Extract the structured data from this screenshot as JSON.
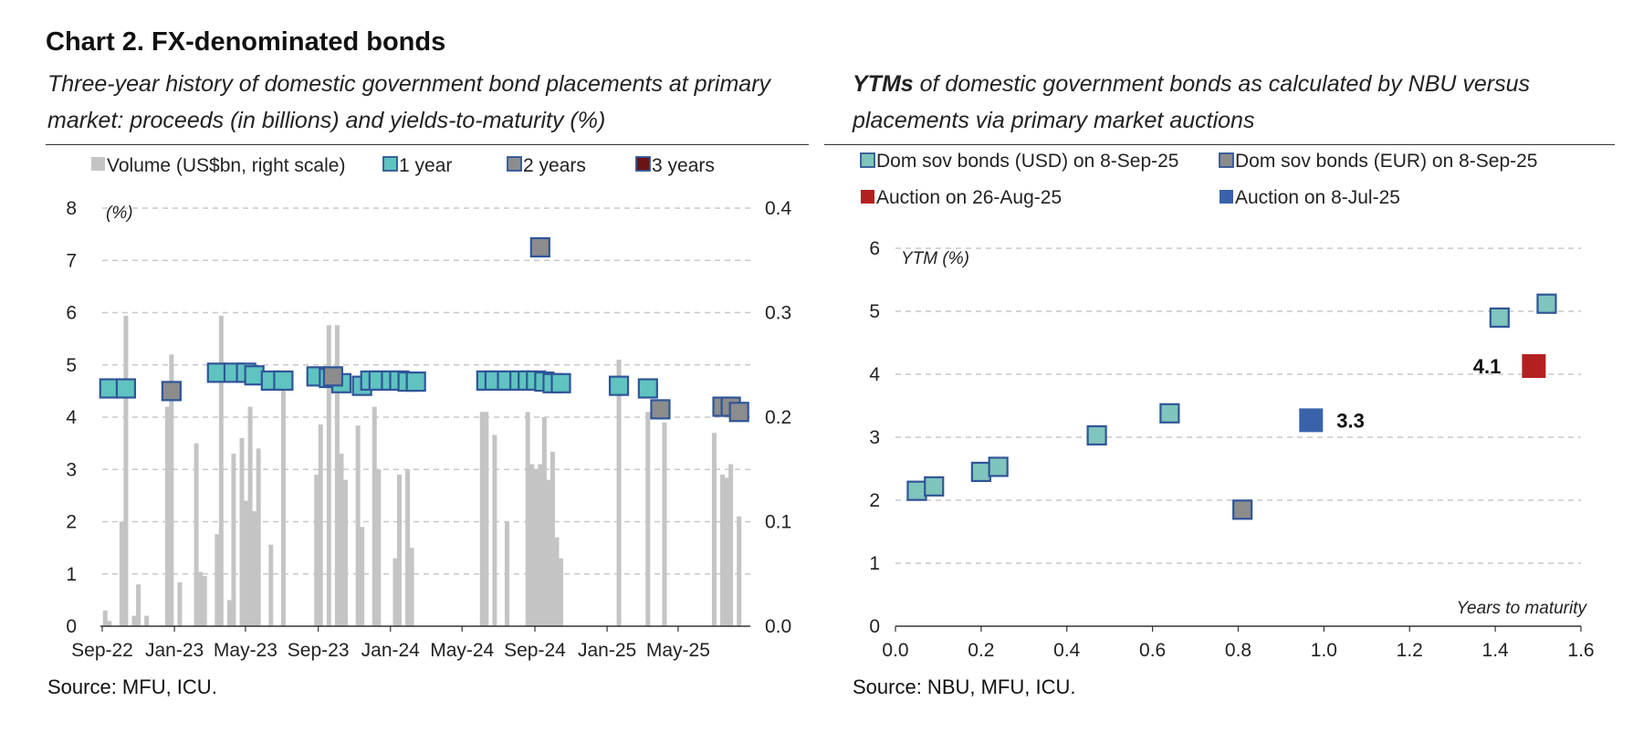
{
  "header": {
    "title": "Chart 2. FX-denominated bonds",
    "left_subtitle": "Three-year history of domestic government bond placements at primary market: proceeds (in billions) and yields-to-maturity (%)",
    "right_subtitle_em": "YTMs",
    "right_subtitle_rest": " of domestic government bonds as calculated by NBU versus placements via primary market auctions"
  },
  "sources": {
    "left": "Source: MFU, ICU.",
    "right": "Source: NBU, MFU, ICU."
  },
  "colors": {
    "bar": "#c4c4c4",
    "teal": "#5fc3c0",
    "gray_marker": "#8c8c8c",
    "dark_red": "#6b1414",
    "red": "#b42020",
    "blue": "#3a62ab",
    "marker_edge": "#2f5597",
    "grid": "#c8c8c8"
  },
  "chart_data": [
    {
      "type": "bar+scatter",
      "legend": [
        "Volume (US$bn, right scale)",
        "1 year",
        "2 years",
        "3 years"
      ],
      "legend_placement": "top",
      "ylabel_left": "(%)",
      "left_ticks": [
        "0",
        "1",
        "2",
        "3",
        "4",
        "5",
        "6",
        "7",
        "8"
      ],
      "right_ticks": [
        "0.0",
        "0.1",
        "0.2",
        "0.3",
        "0.4"
      ],
      "x_ticks": [
        "Sep-22",
        "Jan-23",
        "May-23",
        "Sep-23",
        "Jan-24",
        "May-24",
        "Sep-24",
        "Jan-25",
        "May-25"
      ],
      "x_range": [
        "2022-09-01",
        "2025-08-31"
      ],
      "ylim_left": [
        0,
        8
      ],
      "ylim_right": [
        0,
        0.4
      ],
      "grid": true,
      "volume_series": {
        "name": "Volume (US$bn, right scale)",
        "points": [
          [
            "2022-09-06",
            0.015
          ],
          [
            "2022-09-13",
            0.005
          ],
          [
            "2022-10-04",
            0.1
          ],
          [
            "2022-10-11",
            0.297
          ],
          [
            "2022-10-25",
            0.01
          ],
          [
            "2022-11-01",
            0.04
          ],
          [
            "2022-11-15",
            0.01
          ],
          [
            "2022-12-20",
            0.21
          ],
          [
            "2022-12-27",
            0.26
          ],
          [
            "2023-01-10",
            0.042
          ],
          [
            "2023-02-07",
            0.175
          ],
          [
            "2023-02-14",
            0.052
          ],
          [
            "2023-02-21",
            0.048
          ],
          [
            "2023-03-14",
            0.088
          ],
          [
            "2023-03-21",
            0.297
          ],
          [
            "2023-04-04",
            0.025
          ],
          [
            "2023-04-11",
            0.165
          ],
          [
            "2023-04-25",
            0.18
          ],
          [
            "2023-05-02",
            0.12
          ],
          [
            "2023-05-09",
            0.21
          ],
          [
            "2023-05-16",
            0.11
          ],
          [
            "2023-05-23",
            0.17
          ],
          [
            "2023-06-13",
            0.078
          ],
          [
            "2023-07-04",
            0.24
          ],
          [
            "2023-08-29",
            0.145
          ],
          [
            "2023-09-05",
            0.193
          ],
          [
            "2023-09-19",
            0.288
          ],
          [
            "2023-10-03",
            0.288
          ],
          [
            "2023-10-10",
            0.165
          ],
          [
            "2023-10-17",
            0.14
          ],
          [
            "2023-11-07",
            0.192
          ],
          [
            "2023-11-14",
            0.095
          ],
          [
            "2023-12-05",
            0.21
          ],
          [
            "2023-12-12",
            0.15
          ],
          [
            "2024-01-09",
            0.065
          ],
          [
            "2024-01-16",
            0.145
          ],
          [
            "2024-01-30",
            0.15
          ],
          [
            "2024-02-06",
            0.075
          ],
          [
            "2024-06-04",
            0.205
          ],
          [
            "2024-06-11",
            0.205
          ],
          [
            "2024-06-25",
            0.183
          ],
          [
            "2024-07-16",
            0.1
          ],
          [
            "2024-08-20",
            0.205
          ],
          [
            "2024-08-27",
            0.155
          ],
          [
            "2024-09-03",
            0.15
          ],
          [
            "2024-09-10",
            0.155
          ],
          [
            "2024-09-17",
            0.2
          ],
          [
            "2024-09-24",
            0.14
          ],
          [
            "2024-10-01",
            0.167
          ],
          [
            "2024-10-08",
            0.085
          ],
          [
            "2024-10-15",
            0.065
          ],
          [
            "2025-01-21",
            0.255
          ],
          [
            "2025-03-11",
            0.205
          ],
          [
            "2025-04-08",
            0.195
          ],
          [
            "2025-07-01",
            0.185
          ],
          [
            "2025-07-15",
            0.145
          ],
          [
            "2025-07-22",
            0.142
          ],
          [
            "2025-07-29",
            0.155
          ],
          [
            "2025-08-12",
            0.105
          ]
        ]
      },
      "yield_series": [
        {
          "name": "1 year",
          "points": [
            [
              "2022-09-13",
              4.55
            ],
            [
              "2022-10-11",
              4.55
            ],
            [
              "2023-03-14",
              4.85
            ],
            [
              "2023-04-11",
              4.85
            ],
            [
              "2023-05-02",
              4.85
            ],
            [
              "2023-05-16",
              4.8
            ],
            [
              "2023-06-13",
              4.7
            ],
            [
              "2023-07-04",
              4.7
            ],
            [
              "2023-08-29",
              4.78
            ],
            [
              "2023-09-19",
              4.75
            ],
            [
              "2023-10-10",
              4.65
            ],
            [
              "2023-11-14",
              4.6
            ],
            [
              "2023-11-28",
              4.7
            ],
            [
              "2023-12-12",
              4.7
            ],
            [
              "2024-01-02",
              4.7
            ],
            [
              "2024-01-16",
              4.7
            ],
            [
              "2024-01-30",
              4.68
            ],
            [
              "2024-02-13",
              4.68
            ],
            [
              "2024-06-11",
              4.7
            ],
            [
              "2024-06-25",
              4.7
            ],
            [
              "2024-07-16",
              4.7
            ],
            [
              "2024-08-06",
              4.7
            ],
            [
              "2024-08-20",
              4.7
            ],
            [
              "2024-09-03",
              4.7
            ],
            [
              "2024-09-17",
              4.68
            ],
            [
              "2024-10-01",
              4.65
            ],
            [
              "2024-10-15",
              4.65
            ],
            [
              "2025-01-21",
              4.6
            ],
            [
              "2025-03-11",
              4.55
            ]
          ]
        },
        {
          "name": "2 years",
          "points": [
            [
              "2022-12-27",
              4.5
            ],
            [
              "2023-09-26",
              4.78
            ],
            [
              "2024-09-10",
              7.25
            ],
            [
              "2025-04-01",
              4.15
            ],
            [
              "2025-07-15",
              4.2
            ],
            [
              "2025-07-29",
              4.2
            ],
            [
              "2025-08-12",
              4.1
            ]
          ]
        },
        {
          "name": "3 years",
          "points": []
        }
      ]
    },
    {
      "type": "scatter",
      "legend": [
        "Dom sov bonds (USD) on 8-Sep-25",
        "Dom sov bonds (EUR) on 8-Sep-25",
        "Auction on 26-Aug-25",
        "Auction on 8-Jul-25"
      ],
      "legend_placement": "top",
      "ylabel": "YTM (%)",
      "xlabel": "Years to maturity",
      "x_ticks": [
        "0.0",
        "0.2",
        "0.4",
        "0.6",
        "0.8",
        "1.0",
        "1.2",
        "1.4",
        "1.6"
      ],
      "y_ticks": [
        "0",
        "1",
        "2",
        "3",
        "4",
        "5",
        "6"
      ],
      "xlim": [
        0,
        1.6
      ],
      "ylim": [
        0,
        6
      ],
      "grid": true,
      "series": [
        {
          "name": "Dom sov bonds (USD) on 8-Sep-25",
          "points": [
            [
              0.05,
              2.15
            ],
            [
              0.09,
              2.22
            ],
            [
              0.2,
              2.45
            ],
            [
              0.24,
              2.53
            ],
            [
              0.47,
              3.03
            ],
            [
              0.64,
              3.38
            ],
            [
              1.41,
              4.9
            ],
            [
              1.52,
              5.12
            ]
          ]
        },
        {
          "name": "Dom sov bonds (EUR) on 8-Sep-25",
          "points": [
            [
              0.81,
              1.85
            ]
          ]
        },
        {
          "name": "Auction on 26-Aug-25",
          "points": [
            [
              1.49,
              4.13
            ]
          ]
        },
        {
          "name": "Auction on 8-Jul-25",
          "points": [
            [
              0.97,
              3.27
            ]
          ]
        }
      ],
      "annotations": [
        "4.1",
        "3.3"
      ]
    }
  ]
}
